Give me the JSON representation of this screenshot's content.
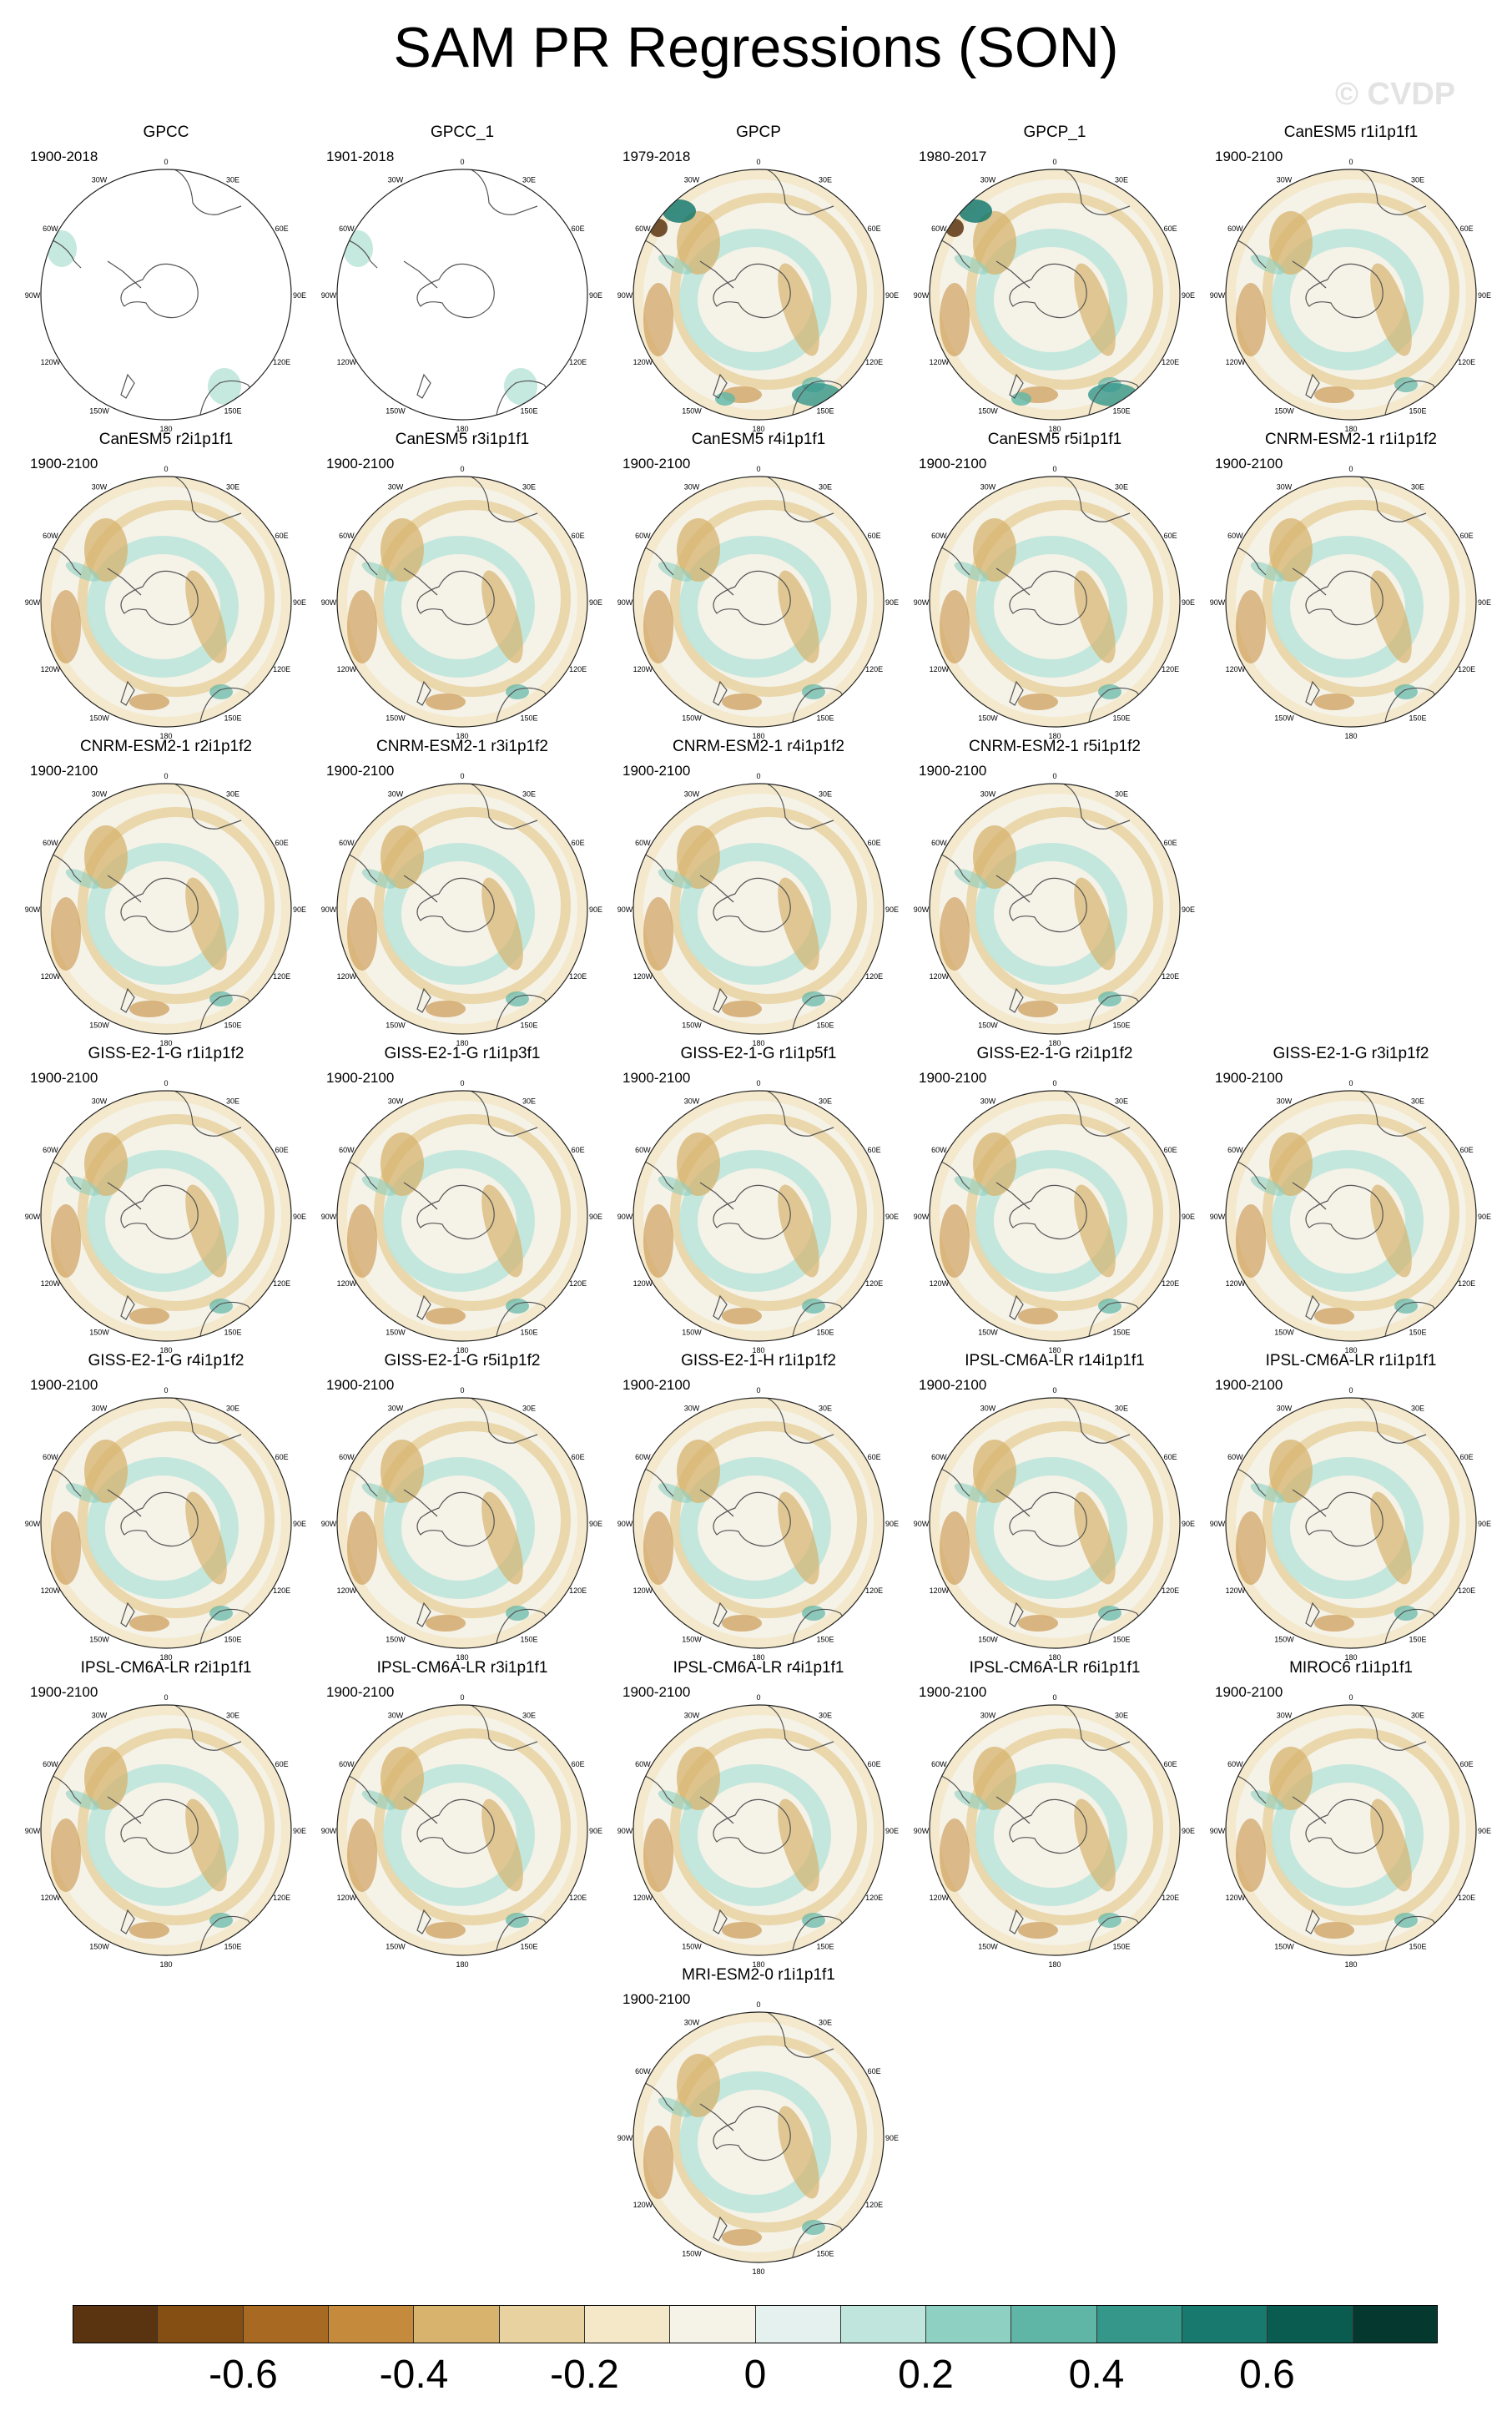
{
  "title": "SAM PR Regressions (SON)",
  "watermark": "© CVDP",
  "lon_labels": [
    "0",
    "30E",
    "60E",
    "90E",
    "120E",
    "150E",
    "180",
    "150W",
    "120W",
    "90W",
    "60W",
    "30W"
  ],
  "panels": [
    {
      "name": "GPCC",
      "period": "1900-2018",
      "style": "obs"
    },
    {
      "name": "GPCC_1",
      "period": "1901-2018",
      "style": "obs"
    },
    {
      "name": "GPCP",
      "period": "1979-2018",
      "style": "gpcp"
    },
    {
      "name": "GPCP_1",
      "period": "1980-2017",
      "style": "gpcp"
    },
    {
      "name": "CanESM5 r1i1p1f1",
      "period": "1900-2100",
      "style": "model"
    },
    {
      "name": "CanESM5 r2i1p1f1",
      "period": "1900-2100",
      "style": "model"
    },
    {
      "name": "CanESM5 r3i1p1f1",
      "period": "1900-2100",
      "style": "model"
    },
    {
      "name": "CanESM5 r4i1p1f1",
      "period": "1900-2100",
      "style": "model"
    },
    {
      "name": "CanESM5 r5i1p1f1",
      "period": "1900-2100",
      "style": "model"
    },
    {
      "name": "CNRM-ESM2-1 r1i1p1f2",
      "period": "1900-2100",
      "style": "model"
    },
    {
      "name": "CNRM-ESM2-1 r2i1p1f2",
      "period": "1900-2100",
      "style": "model"
    },
    {
      "name": "CNRM-ESM2-1 r3i1p1f2",
      "period": "1900-2100",
      "style": "model"
    },
    {
      "name": "CNRM-ESM2-1 r4i1p1f2",
      "period": "1900-2100",
      "style": "model"
    },
    {
      "name": "CNRM-ESM2-1 r5i1p1f2",
      "period": "1900-2100",
      "style": "model"
    },
    {
      "name": "GISS-E2-1-G r1i1p1f2",
      "period": "1900-2100",
      "style": "model"
    },
    {
      "name": "GISS-E2-1-G r1i1p3f1",
      "period": "1900-2100",
      "style": "model"
    },
    {
      "name": "GISS-E2-1-G r1i1p5f1",
      "period": "1900-2100",
      "style": "model"
    },
    {
      "name": "GISS-E2-1-G r2i1p1f2",
      "period": "1900-2100",
      "style": "model"
    },
    {
      "name": "GISS-E2-1-G r3i1p1f2",
      "period": "1900-2100",
      "style": "model"
    },
    {
      "name": "GISS-E2-1-G r4i1p1f2",
      "period": "1900-2100",
      "style": "model"
    },
    {
      "name": "GISS-E2-1-G r5i1p1f2",
      "period": "1900-2100",
      "style": "model"
    },
    {
      "name": "GISS-E2-1-H r1i1p1f2",
      "period": "1900-2100",
      "style": "model"
    },
    {
      "name": "IPSL-CM6A-LR r14i1p1f1",
      "period": "1900-2100",
      "style": "model"
    },
    {
      "name": "IPSL-CM6A-LR r1i1p1f1",
      "period": "1900-2100",
      "style": "model"
    },
    {
      "name": "IPSL-CM6A-LR r2i1p1f1",
      "period": "1900-2100",
      "style": "model"
    },
    {
      "name": "IPSL-CM6A-LR r3i1p1f1",
      "period": "1900-2100",
      "style": "model"
    },
    {
      "name": "IPSL-CM6A-LR r4i1p1f1",
      "period": "1900-2100",
      "style": "model"
    },
    {
      "name": "IPSL-CM6A-LR r6i1p1f1",
      "period": "1900-2100",
      "style": "model"
    },
    {
      "name": "MIROC6 r1i1p1f1",
      "period": "1900-2100",
      "style": "model"
    },
    {
      "name": "MRI-ESM2-0 r1i1p1f1",
      "period": "1900-2100",
      "style": "model"
    }
  ],
  "colorbar": {
    "colors": [
      "#5a3410",
      "#854f13",
      "#a86a22",
      "#c58a3b",
      "#d7b36d",
      "#e8d2a0",
      "#f4e8c9",
      "#f5f2e8",
      "#e4f1ee",
      "#bfe5dc",
      "#8ed1c2",
      "#5fb6a6",
      "#35968a",
      "#187a6f",
      "#0b5c50",
      "#05392f"
    ],
    "labels": [
      "-0.6",
      "-0.4",
      "-0.2",
      "0",
      "0.2",
      "0.4",
      "0.6"
    ]
  }
}
